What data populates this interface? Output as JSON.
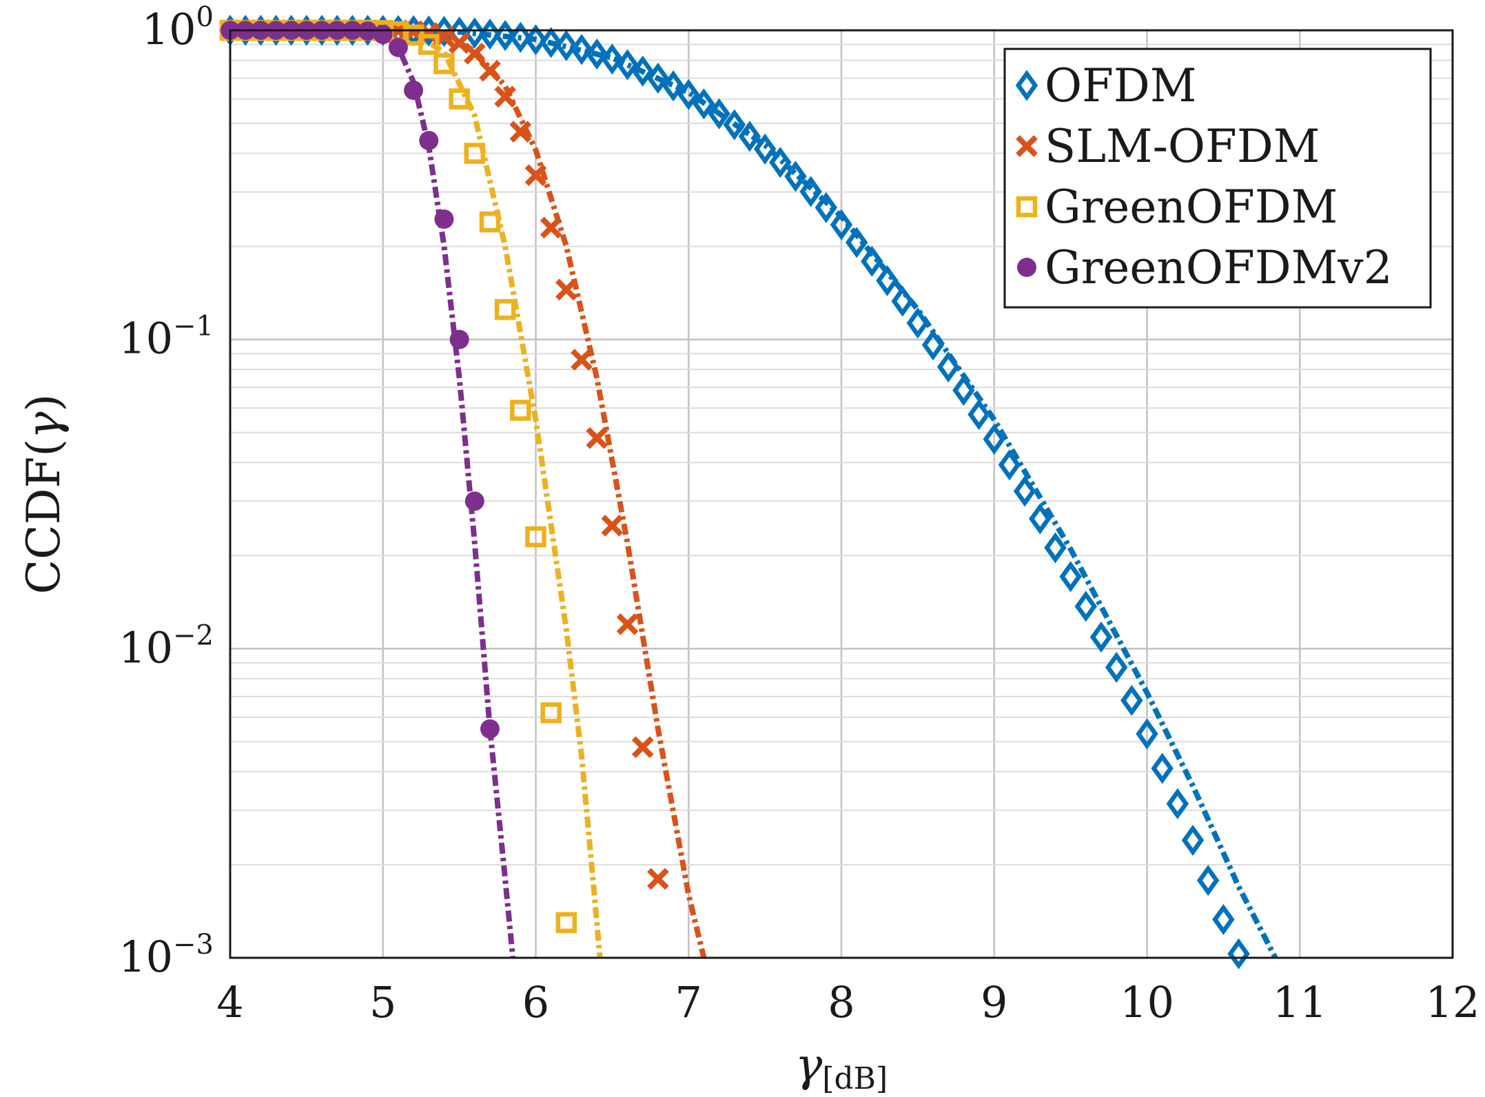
{
  "chart_data": {
    "type": "line",
    "title": "",
    "xlabel_symbol": "γ",
    "xlabel_unit": "[dB]",
    "ylabel_prefix": "CCDF(",
    "ylabel_symbol": "γ",
    "ylabel_suffix": ")",
    "xlim": [
      4,
      12
    ],
    "ylim": [
      0.001,
      1
    ],
    "yscale": "log",
    "grid": true,
    "legend_position": "top-right",
    "x_ticks": [
      "4",
      "5",
      "6",
      "7",
      "8",
      "9",
      "10",
      "11",
      "12"
    ],
    "y_ticks": [
      {
        "base": "10",
        "exp": "0"
      },
      {
        "base": "10",
        "exp": "−1"
      },
      {
        "base": "10",
        "exp": "−2"
      },
      {
        "base": "10",
        "exp": "−3"
      }
    ],
    "series": [
      {
        "name": "OFDM",
        "color": "#0072BD",
        "marker": "diamond",
        "points": [
          [
            4.0,
            1.0
          ],
          [
            4.1,
            1.0
          ],
          [
            4.2,
            1.0
          ],
          [
            4.3,
            1.0
          ],
          [
            4.4,
            1.0
          ],
          [
            4.5,
            1.0
          ],
          [
            4.6,
            1.0
          ],
          [
            4.7,
            1.0
          ],
          [
            4.8,
            1.0
          ],
          [
            4.9,
            1.0
          ],
          [
            5.0,
            0.999
          ],
          [
            5.1,
            0.998
          ],
          [
            5.2,
            0.997
          ],
          [
            5.3,
            0.995
          ],
          [
            5.4,
            0.992
          ],
          [
            5.5,
            0.987
          ],
          [
            5.6,
            0.98
          ],
          [
            5.7,
            0.972
          ],
          [
            5.8,
            0.962
          ],
          [
            5.9,
            0.949
          ],
          [
            6.0,
            0.932
          ],
          [
            6.1,
            0.913
          ],
          [
            6.2,
            0.892
          ],
          [
            6.3,
            0.867
          ],
          [
            6.4,
            0.838
          ],
          [
            6.5,
            0.807
          ],
          [
            6.6,
            0.774
          ],
          [
            6.7,
            0.738
          ],
          [
            6.8,
            0.7
          ],
          [
            6.9,
            0.661
          ],
          [
            7.0,
            0.62
          ],
          [
            7.1,
            0.578
          ],
          [
            7.2,
            0.537
          ],
          [
            7.3,
            0.495
          ],
          [
            7.4,
            0.454
          ],
          [
            7.5,
            0.413
          ],
          [
            7.6,
            0.374
          ],
          [
            7.7,
            0.337
          ],
          [
            7.8,
            0.301
          ],
          [
            7.9,
            0.267
          ],
          [
            8.0,
            0.235
          ],
          [
            8.1,
            0.206
          ],
          [
            8.2,
            0.179
          ],
          [
            8.3,
            0.155
          ],
          [
            8.4,
            0.133
          ],
          [
            8.5,
            0.113
          ],
          [
            8.6,
            0.096
          ],
          [
            8.7,
            0.0815
          ],
          [
            8.8,
            0.0685
          ],
          [
            8.9,
            0.0572
          ],
          [
            9.0,
            0.0476
          ],
          [
            9.1,
            0.0393
          ],
          [
            9.2,
            0.0323
          ],
          [
            9.3,
            0.0263
          ],
          [
            9.4,
            0.0212
          ],
          [
            9.5,
            0.0171
          ],
          [
            9.6,
            0.0137
          ],
          [
            9.7,
            0.0109
          ],
          [
            9.8,
            0.0087
          ],
          [
            9.9,
            0.0068
          ],
          [
            10.0,
            0.0053
          ],
          [
            10.1,
            0.0041
          ],
          [
            10.2,
            0.00315
          ],
          [
            10.3,
            0.0024
          ],
          [
            10.4,
            0.00178
          ],
          [
            10.5,
            0.00133
          ],
          [
            10.6,
            0.00103
          ]
        ],
        "fit_points": [
          [
            4.0,
            1.0
          ],
          [
            5.0,
            0.999
          ],
          [
            5.5,
            0.988
          ],
          [
            6.0,
            0.935
          ],
          [
            6.5,
            0.815
          ],
          [
            7.0,
            0.63
          ],
          [
            7.5,
            0.425
          ],
          [
            8.0,
            0.25
          ],
          [
            8.5,
            0.125
          ],
          [
            9.0,
            0.055
          ],
          [
            9.5,
            0.021
          ],
          [
            10.0,
            0.0072
          ],
          [
            10.3,
            0.0036
          ],
          [
            10.6,
            0.0017
          ],
          [
            10.84,
            0.001
          ]
        ]
      },
      {
        "name": "SLM-OFDM",
        "color": "#D95319",
        "marker": "cross",
        "points": [
          [
            4.0,
            1.0
          ],
          [
            4.1,
            1.0
          ],
          [
            4.2,
            1.0
          ],
          [
            4.3,
            1.0
          ],
          [
            4.4,
            1.0
          ],
          [
            4.5,
            1.0
          ],
          [
            4.6,
            1.0
          ],
          [
            4.7,
            1.0
          ],
          [
            4.8,
            1.0
          ],
          [
            4.9,
            1.0
          ],
          [
            5.0,
            0.999
          ],
          [
            5.1,
            0.998
          ],
          [
            5.2,
            0.993
          ],
          [
            5.3,
            0.98
          ],
          [
            5.4,
            0.955
          ],
          [
            5.5,
            0.91
          ],
          [
            5.6,
            0.84
          ],
          [
            5.7,
            0.74
          ],
          [
            5.8,
            0.61
          ],
          [
            5.9,
            0.47
          ],
          [
            6.0,
            0.34
          ],
          [
            6.1,
            0.23
          ],
          [
            6.2,
            0.145
          ],
          [
            6.3,
            0.086
          ],
          [
            6.4,
            0.048
          ],
          [
            6.5,
            0.025
          ],
          [
            6.6,
            0.012
          ],
          [
            6.7,
            0.0048
          ],
          [
            6.8,
            0.0018
          ]
        ],
        "fit_points": [
          [
            4.0,
            1.0
          ],
          [
            5.0,
            0.999
          ],
          [
            5.2,
            0.994
          ],
          [
            5.4,
            0.96
          ],
          [
            5.6,
            0.86
          ],
          [
            5.8,
            0.66
          ],
          [
            6.0,
            0.41
          ],
          [
            6.2,
            0.2
          ],
          [
            6.4,
            0.075
          ],
          [
            6.6,
            0.022
          ],
          [
            6.8,
            0.0055
          ],
          [
            7.0,
            0.0016
          ],
          [
            7.1,
            0.001
          ]
        ]
      },
      {
        "name": "GreenOFDM",
        "color": "#EDB120",
        "marker": "square",
        "points": [
          [
            4.0,
            1.0
          ],
          [
            4.1,
            1.0
          ],
          [
            4.2,
            1.0
          ],
          [
            4.3,
            1.0
          ],
          [
            4.4,
            1.0
          ],
          [
            4.5,
            1.0
          ],
          [
            4.6,
            1.0
          ],
          [
            4.7,
            1.0
          ],
          [
            4.8,
            1.0
          ],
          [
            4.9,
            1.0
          ],
          [
            5.0,
            0.998
          ],
          [
            5.1,
            0.99
          ],
          [
            5.2,
            0.965
          ],
          [
            5.3,
            0.9
          ],
          [
            5.4,
            0.78
          ],
          [
            5.5,
            0.6
          ],
          [
            5.6,
            0.4
          ],
          [
            5.7,
            0.24
          ],
          [
            5.8,
            0.125
          ],
          [
            5.9,
            0.059
          ],
          [
            6.0,
            0.023
          ],
          [
            6.1,
            0.0062
          ],
          [
            6.2,
            0.0013
          ]
        ],
        "fit_points": [
          [
            4.0,
            1.0
          ],
          [
            5.0,
            0.999
          ],
          [
            5.2,
            0.98
          ],
          [
            5.4,
            0.85
          ],
          [
            5.6,
            0.53
          ],
          [
            5.8,
            0.2
          ],
          [
            6.0,
            0.055
          ],
          [
            6.2,
            0.0115
          ],
          [
            6.3,
            0.0045
          ],
          [
            6.4,
            0.0013
          ],
          [
            6.42,
            0.001
          ]
        ]
      },
      {
        "name": "GreenOFDMv2",
        "color": "#7E2F8E",
        "marker": "circle",
        "points": [
          [
            4.0,
            1.0
          ],
          [
            4.1,
            1.0
          ],
          [
            4.2,
            1.0
          ],
          [
            4.3,
            1.0
          ],
          [
            4.4,
            1.0
          ],
          [
            4.5,
            1.0
          ],
          [
            4.6,
            1.0
          ],
          [
            4.7,
            1.0
          ],
          [
            4.8,
            1.0
          ],
          [
            4.9,
            0.995
          ],
          [
            5.0,
            0.97
          ],
          [
            5.1,
            0.88
          ],
          [
            5.2,
            0.64
          ],
          [
            5.3,
            0.44
          ],
          [
            5.4,
            0.245
          ],
          [
            5.5,
            0.1
          ],
          [
            5.6,
            0.03
          ],
          [
            5.7,
            0.0055
          ]
        ],
        "fit_points": [
          [
            4.0,
            1.0
          ],
          [
            4.8,
            0.999
          ],
          [
            5.0,
            0.975
          ],
          [
            5.1,
            0.88
          ],
          [
            5.2,
            0.68
          ],
          [
            5.3,
            0.42
          ],
          [
            5.4,
            0.2
          ],
          [
            5.5,
            0.075
          ],
          [
            5.6,
            0.022
          ],
          [
            5.7,
            0.0055
          ],
          [
            5.8,
            0.0018
          ],
          [
            5.85,
            0.001
          ]
        ]
      }
    ]
  }
}
